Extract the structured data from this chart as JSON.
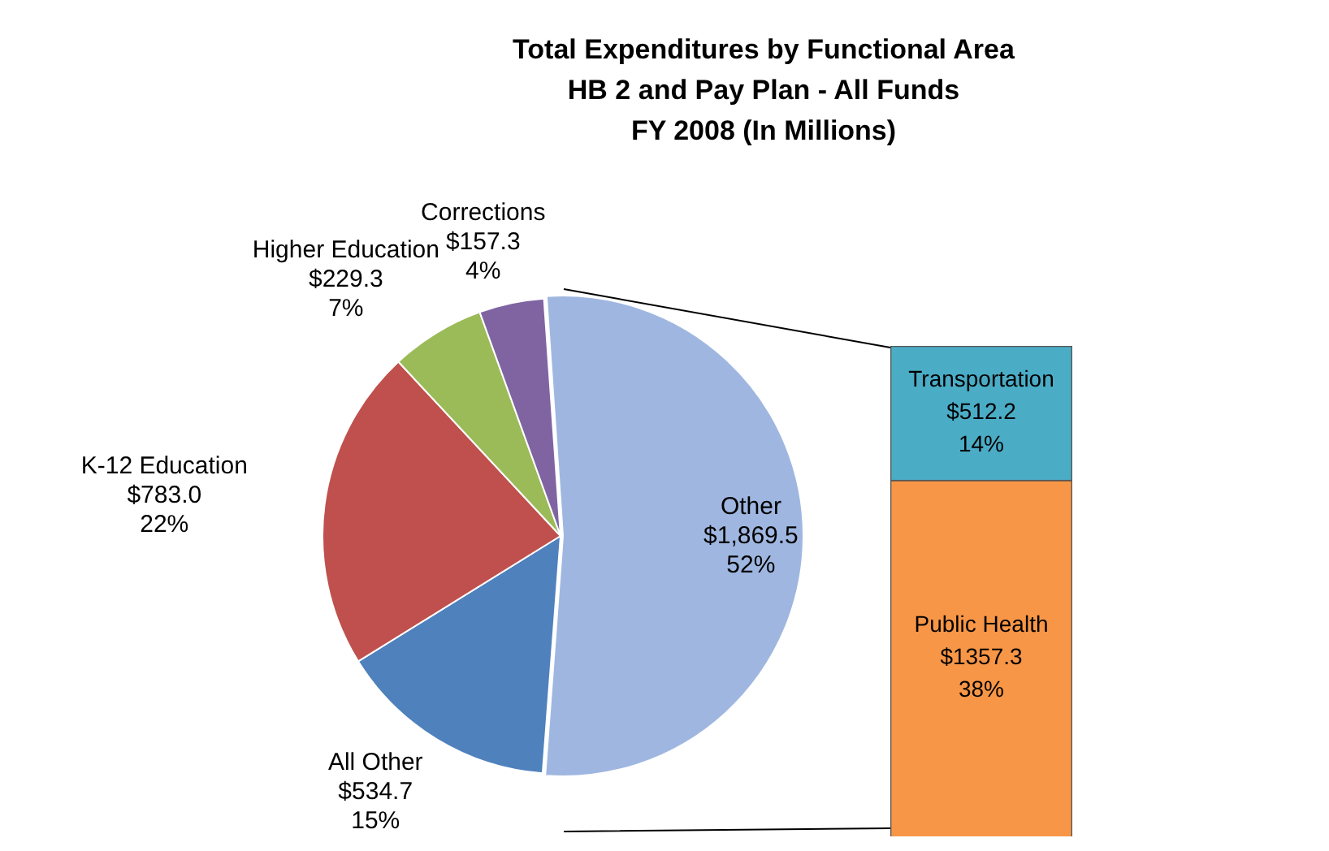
{
  "chart_data": [
    {
      "type": "pie",
      "title": [
        "Total Expenditures by Functional Area",
        "HB 2 and Pay Plan - All Funds",
        "FY 2008 (In Millions)"
      ],
      "categories": [
        "Other",
        "All Other",
        "K-12 Education",
        "Higher Education",
        "Corrections"
      ],
      "values": [
        1869.5,
        534.7,
        783.0,
        229.3,
        157.3
      ],
      "colors": [
        "#9fb7e0",
        "#4f81bd",
        "#c0504d",
        "#9bbb59",
        "#8064a2"
      ],
      "value_labels": [
        "$1,869.5\n52%",
        "$534.7\n15%",
        "$783.0\n22%",
        "$229.3\n7%",
        "$157.3\n4%"
      ],
      "legend": false
    },
    {
      "type": "bar",
      "stacked": true,
      "categories": [
        null
      ],
      "series": [
        {
          "name": "Public Health",
          "color": "#f79646",
          "values": [
            1357.3
          ],
          "value_labels": [
            "$1357.3\n38%"
          ]
        },
        {
          "name": "Transportation",
          "color": "#4bacc6",
          "values": [
            512.2
          ],
          "value_labels": [
            "$512.2\n14%"
          ]
        }
      ],
      "legend": false
    }
  ]
}
